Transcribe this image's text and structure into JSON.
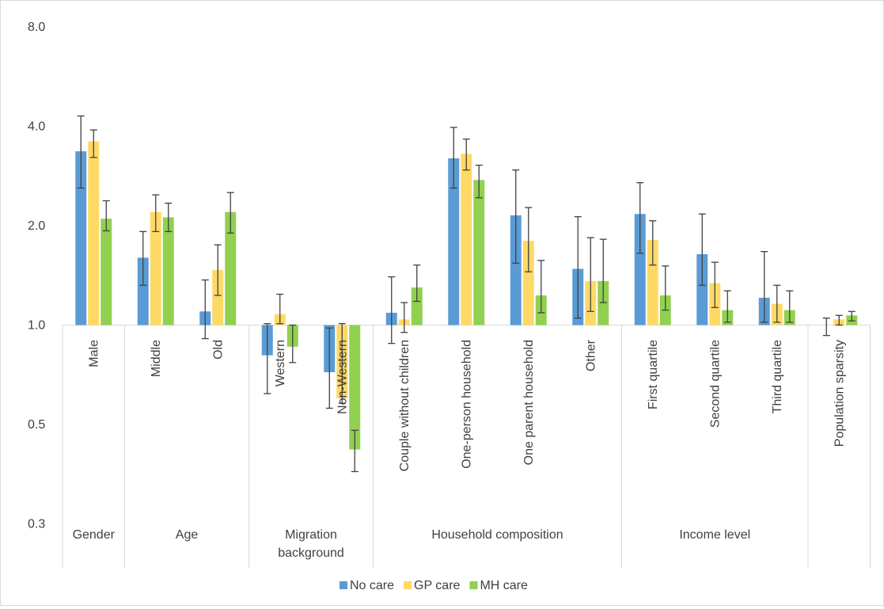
{
  "chart_data": {
    "type": "bar",
    "y_scale": "log",
    "ylim": [
      0.3,
      8.0
    ],
    "y_ticks": [
      "8.0",
      "4.0",
      "2.0",
      "1.0",
      "0.5",
      "0.3"
    ],
    "y_tick_values": [
      8.0,
      4.0,
      2.0,
      1.0,
      0.5,
      0.25
    ],
    "baseline": 1.0,
    "categories": [
      "Male",
      "Middle",
      "Old",
      "Western",
      "Non-Western",
      "Couple without children",
      "One-person household",
      "One parent household",
      "Other",
      "First quartile",
      "Second quartile",
      "Third quartile",
      "Population sparsity"
    ],
    "groups": [
      {
        "label": "Gender",
        "span": 1
      },
      {
        "label": "Age",
        "span": 2
      },
      {
        "label": "Migration background",
        "span": 2
      },
      {
        "label": "Household composition",
        "span": 4
      },
      {
        "label": "Income level",
        "span": 3
      },
      {
        "label": "",
        "span": 1
      }
    ],
    "series": [
      {
        "name": "No care",
        "color": "#5b9bd5",
        "values": [
          3.36,
          1.6,
          1.1,
          0.81,
          0.72,
          1.09,
          3.2,
          2.15,
          1.48,
          2.17,
          1.64,
          1.21,
          null
        ],
        "ci_low": [
          2.6,
          1.32,
          0.91,
          0.62,
          0.56,
          0.88,
          2.6,
          1.54,
          1.05,
          1.65,
          1.32,
          1.02,
          0.93
        ],
        "ci_high": [
          4.3,
          1.92,
          1.37,
          1.01,
          0.98,
          1.4,
          3.97,
          2.95,
          2.13,
          2.7,
          2.17,
          1.67,
          1.05
        ]
      },
      {
        "name": "GP care",
        "color": "#ffd966",
        "values": [
          3.6,
          2.2,
          1.47,
          1.08,
          0.6,
          1.04,
          3.3,
          1.8,
          1.36,
          1.81,
          1.34,
          1.16,
          1.04
        ],
        "ci_low": [
          3.22,
          1.92,
          1.23,
          1.01,
          0.58,
          0.95,
          2.95,
          1.45,
          1.1,
          1.52,
          1.13,
          1.02,
          1.0
        ],
        "ci_high": [
          3.9,
          2.48,
          1.75,
          1.24,
          1.01,
          1.17,
          3.66,
          2.27,
          1.84,
          2.07,
          1.55,
          1.32,
          1.07
        ]
      },
      {
        "name": "MH care",
        "color": "#92d050",
        "values": [
          2.1,
          2.12,
          2.2,
          0.86,
          0.42,
          1.3,
          2.75,
          1.23,
          1.36,
          1.23,
          1.11,
          1.11,
          1.07
        ],
        "ci_low": [
          1.93,
          1.92,
          1.9,
          0.77,
          0.36,
          1.18,
          2.43,
          1.09,
          1.17,
          1.11,
          1.02,
          1.02,
          1.03
        ],
        "ci_high": [
          2.38,
          2.34,
          2.52,
          1.0,
          0.48,
          1.52,
          3.05,
          1.57,
          1.82,
          1.51,
          1.27,
          1.27,
          1.1
        ]
      }
    ],
    "legend": [
      "No care",
      "GP care",
      "MH care"
    ],
    "legend_position": "bottom",
    "grid": false,
    "error_bars": true
  }
}
